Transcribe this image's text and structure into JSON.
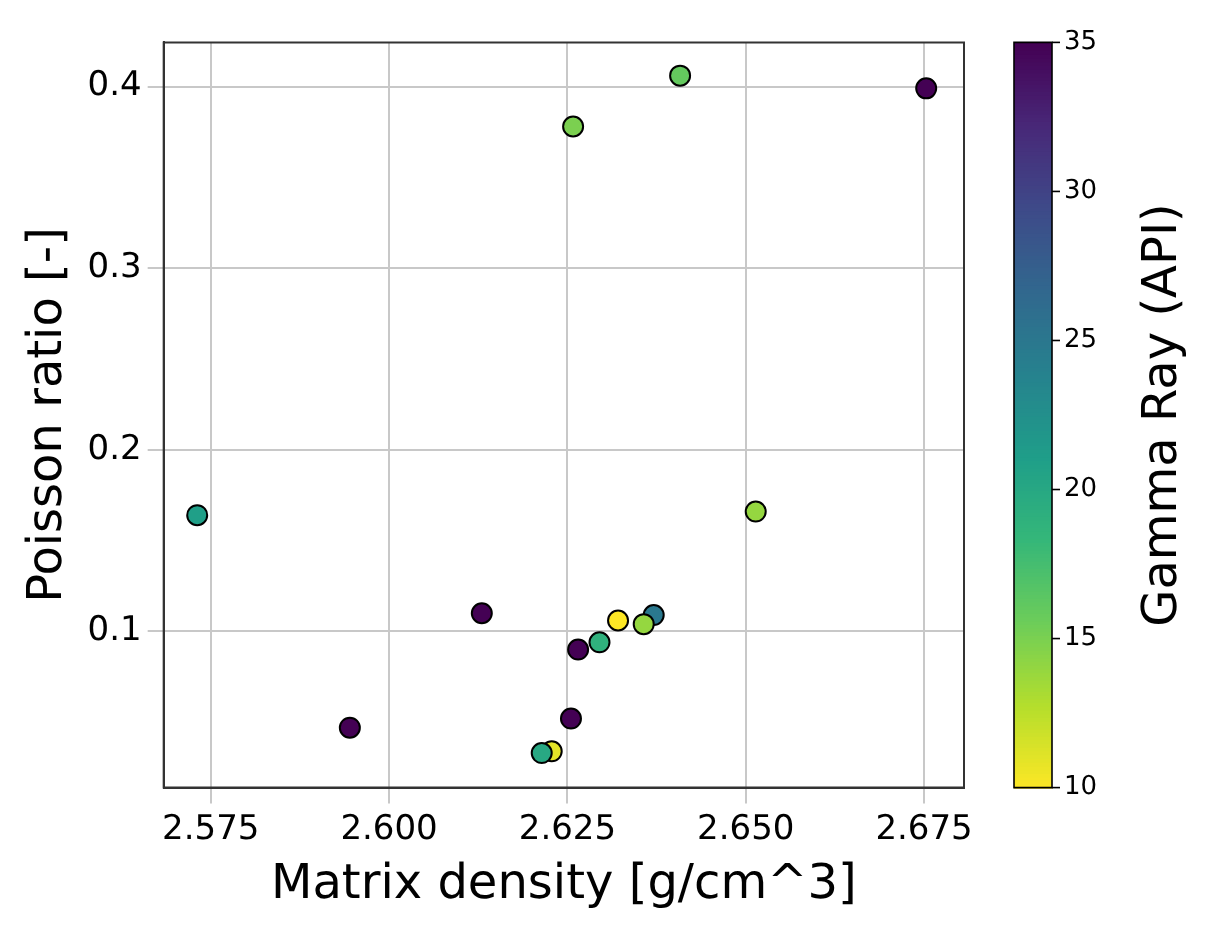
{
  "chart_data": {
    "type": "scatter",
    "xlabel": "Matrix density [g/cm^3]",
    "ylabel": "Poisson ratio [-]",
    "clabel": "Gamma Ray (API)",
    "x": [
      2.6258,
      2.6408,
      2.6753,
      2.5731,
      2.6514,
      2.613,
      2.5945,
      2.6321,
      2.6371,
      2.6357,
      2.6295,
      2.6265,
      2.6255,
      2.6228,
      2.6214
    ],
    "values": [
      0.378,
      0.406,
      0.399,
      0.164,
      0.166,
      0.11,
      0.047,
      0.106,
      0.109,
      0.104,
      0.094,
      0.09,
      0.052,
      0.034,
      0.033
    ],
    "cvalues": [
      15,
      16,
      35,
      21,
      14,
      35,
      35,
      10,
      25,
      14,
      19,
      35,
      35,
      11,
      20
    ],
    "xlim": [
      2.5684,
      2.6806
    ],
    "ylim": [
      0.014,
      0.4243
    ],
    "xticks": [
      2.575,
      {
        "value": 2.6,
        "label": "2.600"
      },
      2.625,
      {
        "value": 2.65,
        "label": "2.650"
      },
      2.675
    ],
    "yticks": [
      0.1,
      0.2,
      0.3,
      0.4
    ],
    "clim": [
      10,
      35
    ],
    "cticks": [
      10,
      15,
      20,
      25,
      30,
      35
    ],
    "grid": true,
    "marker": "circle"
  }
}
